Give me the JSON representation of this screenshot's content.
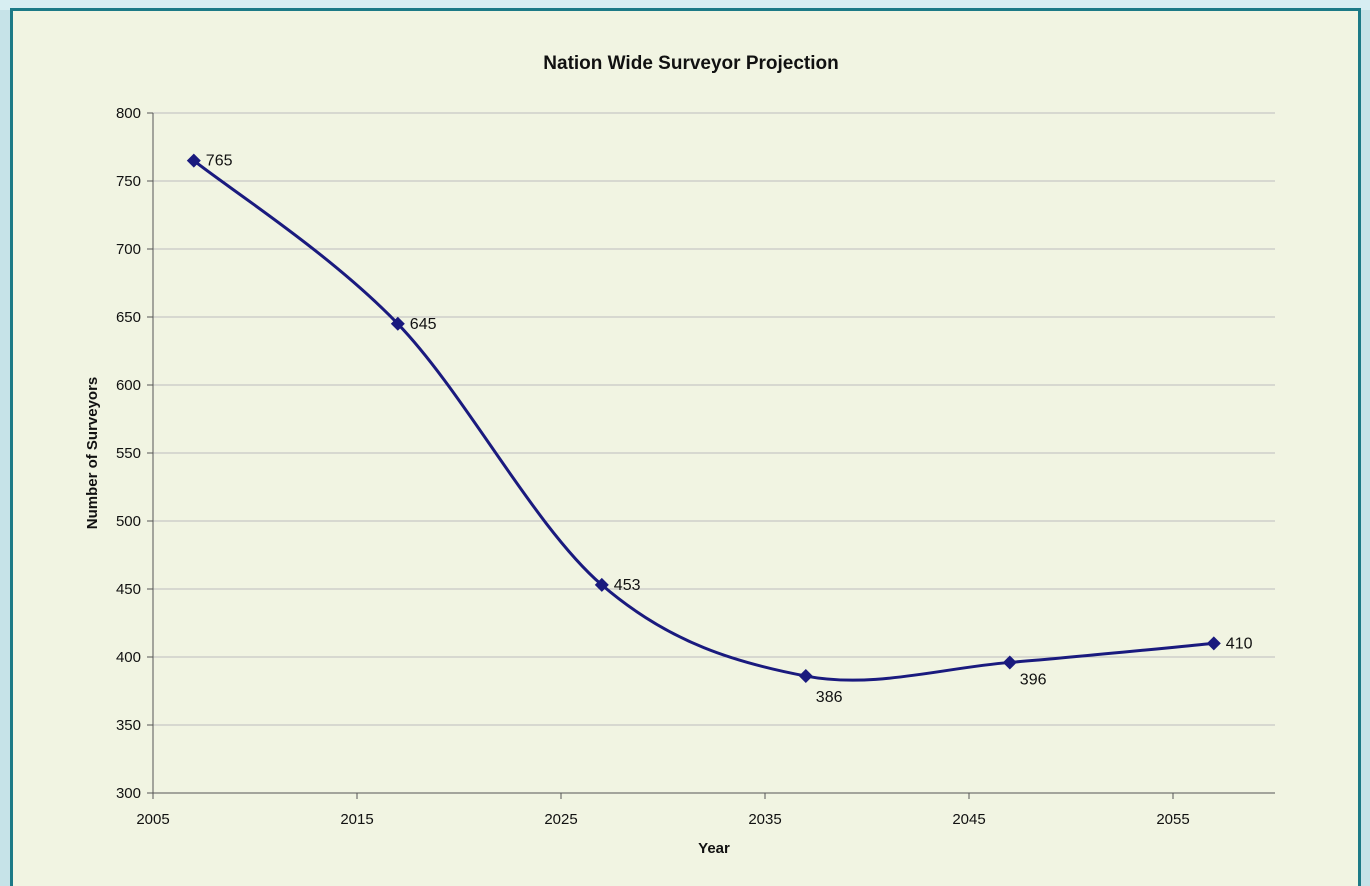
{
  "chart_data": {
    "type": "line",
    "title": "Nation Wide Surveyor Projection",
    "xlabel": "Year",
    "ylabel": "Number of Surveyors",
    "xlim": [
      2005,
      2060
    ],
    "ylim": [
      300,
      800
    ],
    "xticks": [
      "2005",
      "2015",
      "2025",
      "2035",
      "2045",
      "2055"
    ],
    "yticks": [
      "300",
      "350",
      "400",
      "450",
      "500",
      "550",
      "600",
      "650",
      "700",
      "750",
      "800"
    ],
    "grid": true,
    "smoothed": true,
    "series": [
      {
        "x": [
          2007,
          2017,
          2027,
          2037,
          2047,
          2057
        ],
        "values": [
          765,
          645,
          453,
          386,
          396,
          410
        ],
        "labels": [
          "765",
          "645",
          "453",
          "386",
          "396",
          "410"
        ],
        "color": "#1a1a7e"
      }
    ]
  },
  "colors": {
    "plot_background": "#f1f4e2",
    "frame_border": "#1c7a86",
    "line": "#1a1a7e",
    "gridline": "#bdbdbd"
  }
}
